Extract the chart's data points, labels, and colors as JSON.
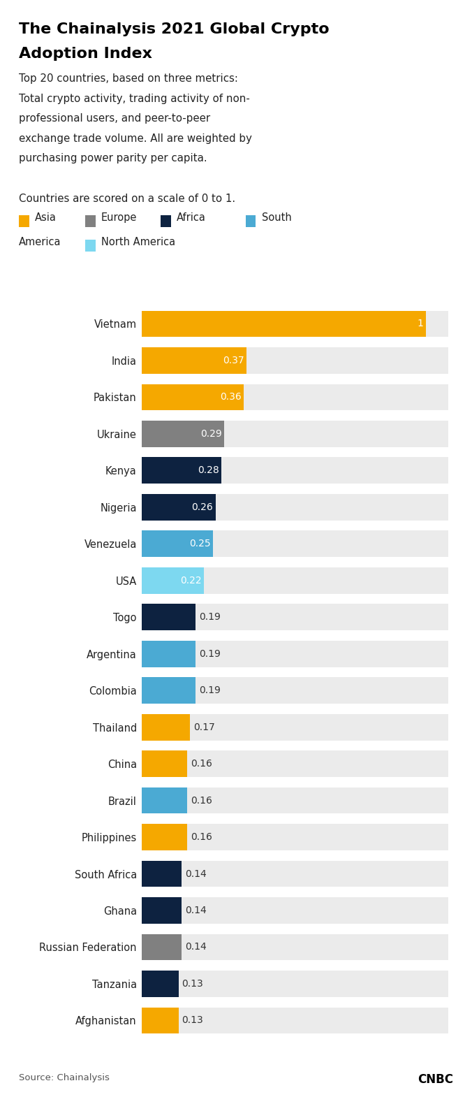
{
  "title_line1": "The Chainalysis 2021 Global Crypto",
  "title_line2": "Adoption Index",
  "subtitle_lines": [
    "Top 20 countries, based on three metrics:",
    "Total crypto activity, trading activity of non-",
    "professional users, and peer-to-peer",
    "exchange trade volume. All are weighted by",
    "purchasing power parity per capita."
  ],
  "scale_note": "Countries are scored on a scale of 0 to 1.",
  "source": "Source: Chainalysis",
  "countries": [
    "Vietnam",
    "India",
    "Pakistan",
    "Ukraine",
    "Kenya",
    "Nigeria",
    "Venezuela",
    "USA",
    "Togo",
    "Argentina",
    "Colombia",
    "Thailand",
    "China",
    "Brazil",
    "Philippines",
    "South Africa",
    "Ghana",
    "Russian Federation",
    "Tanzania",
    "Afghanistan"
  ],
  "values": [
    1.0,
    0.37,
    0.36,
    0.29,
    0.28,
    0.26,
    0.25,
    0.22,
    0.19,
    0.19,
    0.19,
    0.17,
    0.16,
    0.16,
    0.16,
    0.14,
    0.14,
    0.14,
    0.13,
    0.13
  ],
  "colors": [
    "#F5A800",
    "#F5A800",
    "#F5A800",
    "#808080",
    "#0D2240",
    "#0D2240",
    "#4BAAD3",
    "#7DD8F0",
    "#0D2240",
    "#4BAAD3",
    "#4BAAD3",
    "#F5A800",
    "#F5A800",
    "#4BAAD3",
    "#F5A800",
    "#0D2240",
    "#0D2240",
    "#808080",
    "#0D2240",
    "#F5A800"
  ],
  "bar_bg_color": "#EBEBEB",
  "value_threshold": 0.195,
  "xlim": [
    0,
    1.08
  ],
  "legend_row1": [
    {
      "label": "Asia",
      "color": "#F5A800"
    },
    {
      "label": "Europe",
      "color": "#808080"
    },
    {
      "label": "Africa",
      "color": "#0D2240"
    },
    {
      "label": "South",
      "color": "#4BAAD3"
    }
  ],
  "legend_row2": [
    {
      "label": "America",
      "color": null
    },
    {
      "label": "North America",
      "color": "#7DD8F0"
    }
  ]
}
